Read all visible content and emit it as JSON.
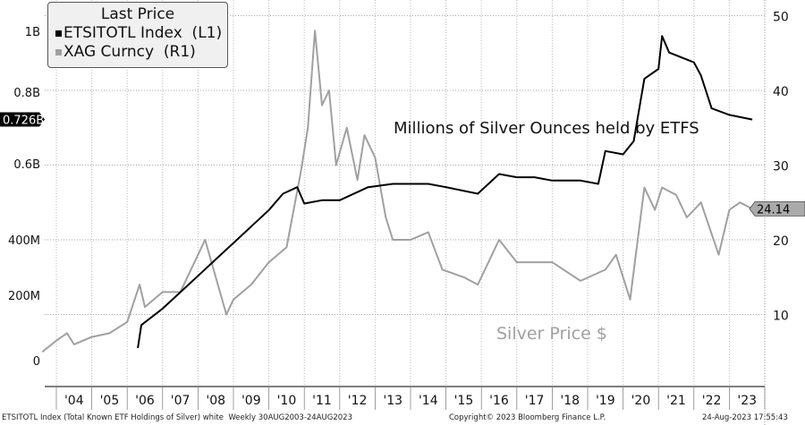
{
  "chart_data": {
    "type": "line",
    "legend_title": "Last Price",
    "legend_placement": "top-left",
    "series": [
      {
        "name": "ETSITOTL Index  (L1)",
        "axis": "left",
        "color": "#000000",
        "unit": "B",
        "x": [
          2006.3,
          2006.4,
          2007.0,
          2007.5,
          2008.0,
          2008.5,
          2009.0,
          2009.5,
          2010.0,
          2010.4,
          2010.8,
          2011.0,
          2011.5,
          2012.0,
          2012.8,
          2013.5,
          2014.0,
          2014.5,
          2015.0,
          2015.9,
          2016.5,
          2017.0,
          2017.5,
          2018.0,
          2018.8,
          2019.3,
          2019.5,
          2020.0,
          2020.3,
          2020.6,
          2021.0,
          2021.1,
          2021.3,
          2022.0,
          2022.2,
          2022.5,
          2023.0,
          2023.65
        ],
        "values": [
          0.03,
          0.1,
          0.15,
          0.2,
          0.25,
          0.3,
          0.35,
          0.4,
          0.45,
          0.5,
          0.52,
          0.47,
          0.48,
          0.48,
          0.52,
          0.53,
          0.53,
          0.53,
          0.52,
          0.5,
          0.56,
          0.55,
          0.55,
          0.54,
          0.54,
          0.53,
          0.63,
          0.62,
          0.66,
          0.85,
          0.88,
          0.98,
          0.93,
          0.9,
          0.86,
          0.76,
          0.74,
          0.726
        ]
      },
      {
        "name": "XAG Curncy  (R1)",
        "axis": "right",
        "color": "#a0a0a0",
        "unit": "$",
        "x": [
          2003.6,
          2004.0,
          2004.3,
          2004.5,
          2005.0,
          2005.5,
          2006.0,
          2006.35,
          2006.5,
          2007.0,
          2007.5,
          2008.2,
          2008.8,
          2009.0,
          2009.5,
          2010.0,
          2010.5,
          2010.9,
          2011.1,
          2011.3,
          2011.5,
          2011.7,
          2011.9,
          2012.2,
          2012.5,
          2012.7,
          2013.0,
          2013.3,
          2013.5,
          2014.0,
          2014.5,
          2014.9,
          2015.5,
          2015.9,
          2016.5,
          2017.0,
          2017.5,
          2018.0,
          2018.8,
          2019.5,
          2019.8,
          2020.2,
          2020.6,
          2020.9,
          2021.1,
          2021.5,
          2021.8,
          2022.2,
          2022.7,
          2023.0,
          2023.3,
          2023.65
        ],
        "values": [
          5,
          6.5,
          7.5,
          6,
          7,
          7.5,
          9,
          14,
          11,
          13,
          13,
          20,
          10,
          12,
          14,
          17,
          19,
          29,
          35,
          48,
          38,
          40,
          30,
          35,
          28,
          34,
          31,
          23,
          20,
          20,
          21,
          16,
          15,
          14,
          20,
          17,
          17,
          17,
          14.5,
          16,
          18,
          12,
          27,
          24,
          27,
          26,
          23,
          25,
          18,
          24,
          25,
          24.14
        ]
      }
    ],
    "left_axis": {
      "ticks": [
        "0",
        "200M",
        "400M",
        "0.6B",
        "0.8B",
        "1B"
      ],
      "range": [
        0,
        1.0
      ]
    },
    "right_axis": {
      "ticks": [
        "10",
        "20",
        "30",
        "40",
        "50"
      ],
      "range": [
        0,
        50
      ]
    },
    "x_ticks": [
      "'04",
      "'05",
      "'06",
      "'07",
      "'08",
      "'09",
      "'10",
      "'11",
      "'12",
      "'13",
      "'14",
      "'15",
      "'16",
      "'17",
      "'18",
      "'19",
      "'20",
      "'21",
      "'22",
      "'23"
    ],
    "last_value_tags": {
      "left": "0.726B",
      "right": "24.14"
    },
    "annotations": [
      "Millions of Silver Ounces held by ETFS",
      "Silver Price $"
    ],
    "grid": true
  },
  "footer": {
    "left": "ETSITOTL Index (Total Known ETF Holdings of Silver) white  Weekly 30AUG2003-24AUG2023",
    "center": "Copyright© 2023 Bloomberg Finance L.P.",
    "right": "24-Aug-2023 17:55:43"
  }
}
